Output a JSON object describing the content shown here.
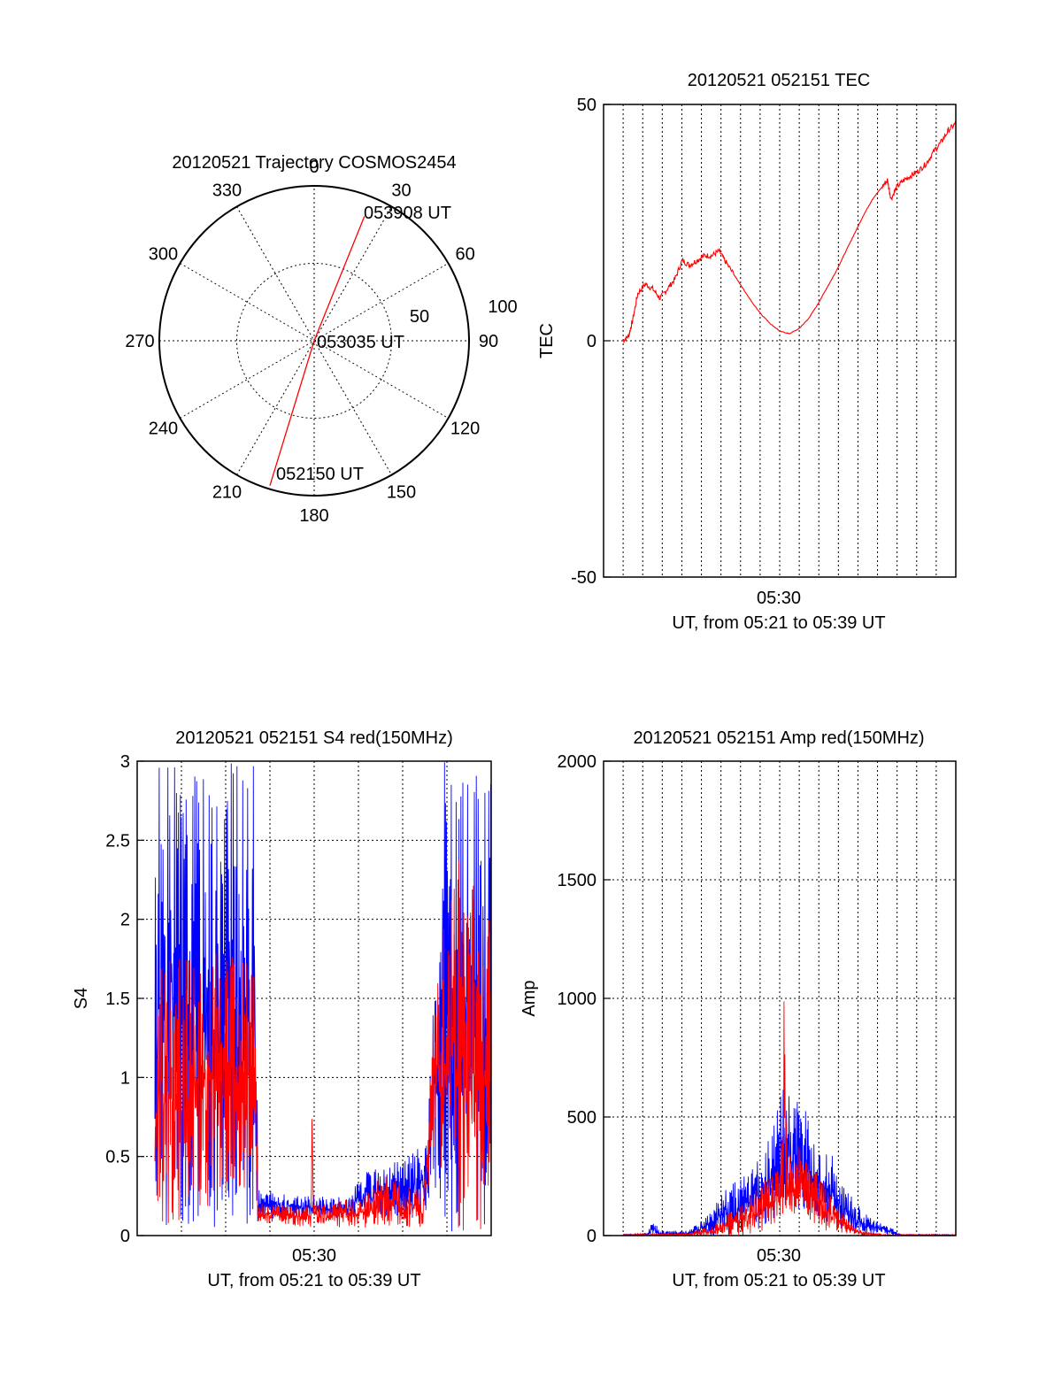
{
  "colors": {
    "red": "#ff0000",
    "blue": "#0000ff",
    "axis": "#000000",
    "grid": "#000000"
  },
  "chart_data": [
    {
      "id": "polar",
      "type": "polar",
      "title": "20120521 Trajectory COSMOS2454",
      "azimuth_labels": [
        "0",
        "30",
        "60",
        "90",
        "120",
        "150",
        "180",
        "210",
        "240",
        "270",
        "300",
        "330"
      ],
      "radius_labels": [
        "50",
        "100"
      ],
      "trajectory": {
        "start": {
          "az": 197,
          "zen": 88,
          "label": "052150 UT"
        },
        "mid": {
          "az": 0,
          "zen": 0,
          "label": "053035 UT"
        },
        "end": {
          "az": 22,
          "zen": 78,
          "label": "053908 UT"
        }
      },
      "series": [
        {
          "color": "red"
        }
      ]
    },
    {
      "id": "tec",
      "type": "line",
      "title": "20120521 052151 TEC",
      "ylabel": "TEC",
      "xlabel": "UT, from 05:21 to 05:39 UT",
      "x_tick_label": "05:30",
      "xlim": [
        "05:21",
        "05:39"
      ],
      "ylim": [
        -50,
        50
      ],
      "yticks": [
        "-50",
        "0",
        "50"
      ],
      "series": [
        {
          "color": "red",
          "points": [
            [
              0.0,
              0
            ],
            [
              0.3,
              1
            ],
            [
              0.5,
              4
            ],
            [
              0.8,
              10
            ],
            [
              1.2,
              12
            ],
            [
              1.6,
              11
            ],
            [
              2.0,
              9
            ],
            [
              2.4,
              11
            ],
            [
              2.8,
              13
            ],
            [
              3.2,
              17
            ],
            [
              3.6,
              16
            ],
            [
              4.0,
              17
            ],
            [
              4.4,
              18
            ],
            [
              4.8,
              18
            ],
            [
              5.2,
              19
            ],
            [
              5.5,
              17
            ],
            [
              6.0,
              14
            ],
            [
              6.5,
              11
            ],
            [
              7.0,
              8
            ],
            [
              7.5,
              5.5
            ],
            [
              8.0,
              3.5
            ],
            [
              8.5,
              2
            ],
            [
              9.0,
              1.5
            ],
            [
              9.5,
              2.5
            ],
            [
              10.0,
              4.5
            ],
            [
              10.5,
              7.5
            ],
            [
              11.0,
              11
            ],
            [
              11.5,
              14.5
            ],
            [
              12.0,
              18.5
            ],
            [
              12.5,
              22.5
            ],
            [
              13.0,
              26.5
            ],
            [
              13.5,
              30
            ],
            [
              14.0,
              32.5
            ],
            [
              14.3,
              34
            ],
            [
              14.5,
              30
            ],
            [
              14.8,
              32.5
            ],
            [
              15.2,
              34
            ],
            [
              15.6,
              35
            ],
            [
              16.0,
              36
            ],
            [
              16.4,
              37.5
            ],
            [
              16.8,
              40
            ],
            [
              17.2,
              42
            ],
            [
              17.6,
              44.5
            ],
            [
              18.0,
              46
            ]
          ]
        }
      ]
    },
    {
      "id": "s4",
      "type": "line",
      "title": "20120521 052151 S4 red(150MHz)",
      "ylabel": "S4",
      "xlabel": "UT, from 05:21 to 05:39 UT",
      "x_tick_label": "05:30",
      "xlim": [
        "05:21",
        "05:39"
      ],
      "ylim": [
        0,
        3
      ],
      "yticks": [
        "0",
        "0.5",
        "1",
        "1.5",
        "2",
        "2.5",
        "3"
      ],
      "series": [
        {
          "color": "blue",
          "envelope": [
            [
              0,
              0,
              3
            ],
            [
              5.7,
              0,
              3
            ],
            [
              5.9,
              0.1,
              0.3
            ],
            [
              8,
              0.12,
              0.25
            ],
            [
              11,
              0.1,
              0.25
            ],
            [
              12,
              0.12,
              0.4
            ],
            [
              13.5,
              0.1,
              0.45
            ],
            [
              15.5,
              0.1,
              0.6
            ],
            [
              15.8,
              0.4,
              1.2
            ],
            [
              16.5,
              0,
              3
            ],
            [
              19.2,
              0,
              3
            ]
          ]
        },
        {
          "color": "red",
          "envelope": [
            [
              0,
              0,
              1.8
            ],
            [
              5.7,
              0.3,
              1.8
            ],
            [
              5.9,
              0.08,
              0.2
            ],
            [
              8.9,
              0.05,
              0.2
            ],
            [
              9.0,
              0.05,
              1.0
            ],
            [
              9.1,
              0.05,
              0.2
            ],
            [
              12,
              0.05,
              0.25
            ],
            [
              13,
              0.05,
              0.4
            ],
            [
              15.3,
              0.05,
              0.3
            ],
            [
              16,
              0.6,
              1.5
            ],
            [
              17,
              0,
              2.5
            ],
            [
              19.2,
              0,
              2
            ]
          ]
        }
      ]
    },
    {
      "id": "amp",
      "type": "line",
      "title": "20120521 052151 Amp red(150MHz)",
      "ylabel": "Amp",
      "xlabel": "UT, from 05:21 to 05:39 UT",
      "x_tick_label": "05:30",
      "xlim": [
        "05:21",
        "05:39"
      ],
      "ylim": [
        0,
        2000
      ],
      "yticks": [
        "0",
        "500",
        "1000",
        "1500",
        "2000"
      ],
      "series": [
        {
          "color": "blue",
          "envelope": [
            [
              0,
              0,
              5
            ],
            [
              1.3,
              0,
              10
            ],
            [
              1.6,
              0,
              70
            ],
            [
              2.0,
              0,
              20
            ],
            [
              3.5,
              0,
              20
            ],
            [
              4.5,
              0,
              80
            ],
            [
              5.5,
              0,
              200
            ],
            [
              6.5,
              0,
              250
            ],
            [
              7.5,
              20,
              350
            ],
            [
              8.0,
              40,
              450
            ],
            [
              8.5,
              80,
              600
            ],
            [
              9.0,
              100,
              650
            ],
            [
              9.5,
              100,
              600
            ],
            [
              10.0,
              80,
              500
            ],
            [
              10.5,
              60,
              400
            ],
            [
              11.0,
              30,
              400
            ],
            [
              11.5,
              30,
              300
            ],
            [
              12.0,
              20,
              200
            ],
            [
              12.5,
              10,
              150
            ],
            [
              13.0,
              10,
              100
            ],
            [
              13.5,
              5,
              80
            ],
            [
              14.0,
              5,
              50
            ],
            [
              14.6,
              0,
              30
            ],
            [
              15.0,
              0,
              5
            ],
            [
              18.0,
              0,
              5
            ]
          ]
        },
        {
          "color": "red",
          "envelope": [
            [
              0,
              0,
              5
            ],
            [
              3.5,
              0,
              10
            ],
            [
              5.0,
              0,
              50
            ],
            [
              6.5,
              0,
              150
            ],
            [
              7.5,
              20,
              220
            ],
            [
              8.5,
              50,
              300
            ],
            [
              8.7,
              50,
              1180
            ],
            [
              8.9,
              50,
              350
            ],
            [
              9.5,
              80,
              380
            ],
            [
              10.0,
              60,
              320
            ],
            [
              11.0,
              20,
              200
            ],
            [
              12.0,
              10,
              80
            ],
            [
              12.5,
              5,
              40
            ],
            [
              13.0,
              0,
              20
            ],
            [
              14.0,
              0,
              5
            ],
            [
              18.0,
              0,
              5
            ]
          ]
        }
      ]
    }
  ]
}
